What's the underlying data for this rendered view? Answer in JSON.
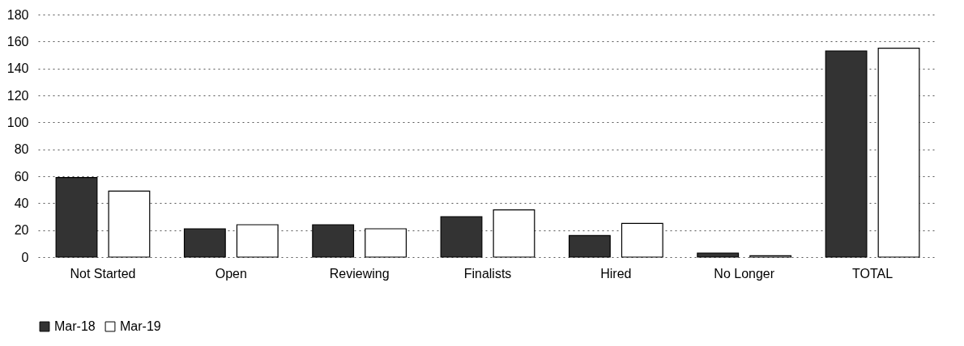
{
  "chart_data": {
    "type": "bar",
    "categories": [
      "Not Started",
      "Open",
      "Reviewing",
      "Finalists",
      "Hired",
      "No Longer",
      "TOTAL"
    ],
    "series": [
      {
        "name": "Mar-18",
        "color": "#333333",
        "values": [
          59,
          21,
          24,
          30,
          16,
          3,
          153
        ]
      },
      {
        "name": "Mar-19",
        "color": "#ffffff",
        "values": [
          49,
          24,
          21,
          35,
          25,
          1,
          155
        ]
      }
    ],
    "ylim": [
      0,
      180
    ],
    "yticks": [
      0,
      20,
      40,
      60,
      80,
      100,
      120,
      140,
      160,
      180
    ],
    "grid": "y",
    "legend": "bottom"
  }
}
